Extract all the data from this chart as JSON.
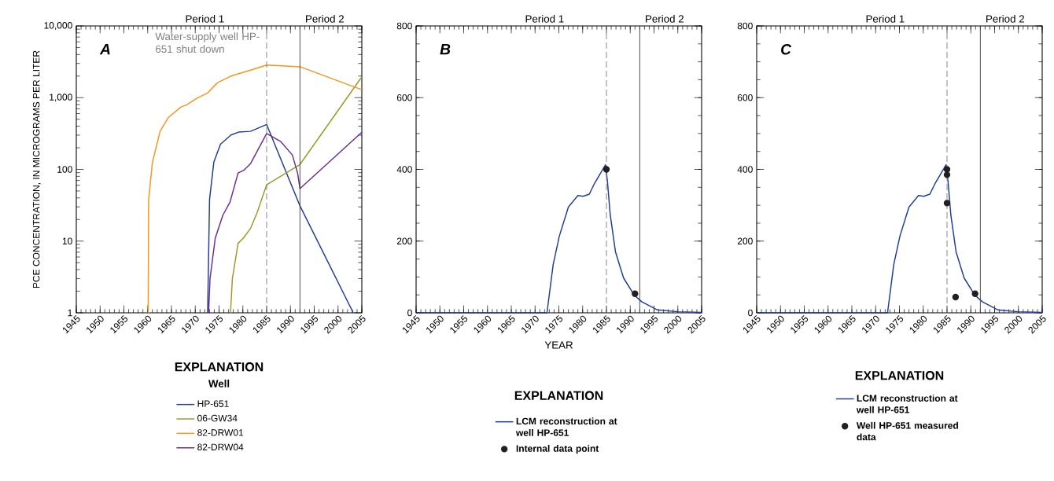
{
  "chart_data": [
    {
      "type": "line",
      "ylabel": "PCE CONCENTRATION, IN MICROGRAMS PER LITER",
      "log": true,
      "legend": "bottom",
      "legend_title": "EXPLANATION",
      "xlim": [
        1945,
        2005
      ],
      "xticks": [
        1945,
        1950,
        1955,
        1960,
        1965,
        1970,
        1975,
        1980,
        1985,
        1990,
        1995,
        2000,
        2005
      ],
      "ylim": [
        1,
        10000
      ],
      "yticks": [
        1,
        10,
        100,
        {
          "value": 1000,
          "label": "1,000"
        },
        {
          "value": 10000,
          "label": "10,000"
        }
      ],
      "ref_lines": [
        {
          "axis": "x",
          "value": 1985,
          "color": "#808080",
          "line_style": "dashed"
        },
        {
          "axis": "x",
          "value": 1992,
          "color": "#404040",
          "line_style": "solid"
        }
      ],
      "annotations": [
        "A",
        "Well",
        "Period 1",
        "Period 2",
        {
          "text": "Water-supply well HP-651 shut down",
          "x": 1985,
          "y": 10000
        }
      ],
      "series": [
        {
          "name": "HP-651",
          "type": "line",
          "color": "#1f3d99",
          "x": [
            1972.6,
            1973,
            1973.9,
            1975.3,
            1977.5,
            1979.1,
            1981.6,
            1985,
            1992,
            2003.2
          ],
          "values": [
            1,
            38,
            126,
            224,
            302,
            331,
            339,
            422,
            31,
            1
          ]
        },
        {
          "name": "06-GW34",
          "type": "line",
          "color": "#9a9a2a",
          "x": [
            1977.4,
            1977.8,
            1979,
            1980.1,
            1981.6,
            1983,
            1985,
            1992,
            2005
          ],
          "values": [
            1,
            3,
            9.3,
            11,
            15,
            25,
            61,
            117,
            1950
          ]
        },
        {
          "name": "82-DRW01",
          "type": "line",
          "color": "#f7941d",
          "x": [
            1960.1,
            1960.2,
            1961,
            1962.6,
            1964.3,
            1967,
            1968.2,
            1970.3,
            1972.5,
            1974.7,
            1977.5,
            1981.9,
            1985,
            1992,
            2005
          ],
          "values": [
            1,
            38,
            126,
            339,
            525,
            741,
            794,
            977,
            1150,
            1620,
            2000,
            2450,
            2850,
            2700,
            1290
          ]
        },
        {
          "name": "82-DRW04",
          "type": "line",
          "color": "#6b2c91",
          "x": [
            1972.8,
            1973.1,
            1974.2,
            1975.8,
            1977.3,
            1979,
            1980.2,
            1981.6,
            1985,
            1987.9,
            1990.4,
            1991.5,
            1992,
            2005
          ],
          "values": [
            1,
            3,
            11,
            23,
            35,
            89,
            97,
            120,
            317,
            246,
            159,
            89,
            54,
            330
          ]
        }
      ]
    },
    {
      "type": "line",
      "xlabel": "YEAR",
      "legend": "bottom",
      "legend_title": "EXPLANATION",
      "xlim": [
        1945,
        2005
      ],
      "xticks": [
        1945,
        1950,
        1955,
        1960,
        1965,
        1970,
        1975,
        1980,
        1985,
        1990,
        1995,
        2000,
        2005
      ],
      "ylim": [
        0,
        800
      ],
      "yticks": [
        0,
        200,
        400,
        600,
        800
      ],
      "ref_lines": [
        {
          "axis": "x",
          "value": 1985,
          "color": "#808080",
          "line_style": "dashed"
        },
        {
          "axis": "x",
          "value": 1992,
          "color": "#404040",
          "line_style": "solid"
        }
      ],
      "annotations": [
        "B",
        "Period 1",
        "Period 2"
      ],
      "series": [
        {
          "name": "LCM reconstruction at well HP-651",
          "color": "#1f3d99",
          "x": [
            1945,
            1972.5,
            1973.8,
            1975.1,
            1977,
            1979,
            1980.1,
            1981.4,
            1982.5,
            1984.8,
            1985.2,
            1985.8,
            1986.9,
            1988.6,
            1990.8,
            1992.4,
            1995.7,
            2000,
            2005
          ],
          "values": [
            0,
            0,
            134,
            214,
            295,
            327,
            325,
            331,
            361,
            413,
            368,
            273,
            170,
            97,
            50,
            31,
            8,
            3,
            1
          ]
        },
        {
          "name": "Internal data point",
          "type": "scatter",
          "marker": "circle",
          "color": "#231f20",
          "x": [
            1985,
            1991
          ],
          "values": [
            400,
            53
          ]
        }
      ]
    },
    {
      "type": "line",
      "legend": "bottom",
      "legend_title": "EXPLANATION",
      "xlim": [
        1945,
        2005
      ],
      "xticks": [
        1945,
        1950,
        1955,
        1960,
        1965,
        1970,
        1975,
        1980,
        1985,
        1990,
        1995,
        2000,
        2005
      ],
      "ylim": [
        0,
        800
      ],
      "yticks": [
        0,
        200,
        400,
        600,
        800
      ],
      "ref_lines": [
        {
          "axis": "x",
          "value": 1985,
          "color": "#808080",
          "line_style": "dashed"
        },
        {
          "axis": "x",
          "value": 1992,
          "color": "#404040",
          "line_style": "solid"
        }
      ],
      "annotations": [
        "C",
        "Period 1",
        "Period 2"
      ],
      "series": [
        {
          "name": "LCM reconstruction at well HP-651",
          "color": "#1f3d99",
          "x": [
            1945,
            1972.5,
            1973.8,
            1975.1,
            1977,
            1979,
            1980.1,
            1981.4,
            1982.5,
            1984.8,
            1985.2,
            1985.8,
            1986.9,
            1988.6,
            1990.8,
            1992.4,
            1995.7,
            2000,
            2005
          ],
          "values": [
            0,
            0,
            134,
            214,
            295,
            327,
            325,
            331,
            361,
            413,
            368,
            273,
            170,
            97,
            50,
            31,
            8,
            3,
            1
          ]
        },
        {
          "name": "Well HP-651 measured data",
          "type": "scatter",
          "marker": "circle",
          "color": "#231f20",
          "x": [
            1985,
            1985,
            1985,
            1986.8,
            1990.9
          ],
          "values": [
            400,
            385,
            306,
            44,
            53
          ]
        }
      ]
    }
  ]
}
